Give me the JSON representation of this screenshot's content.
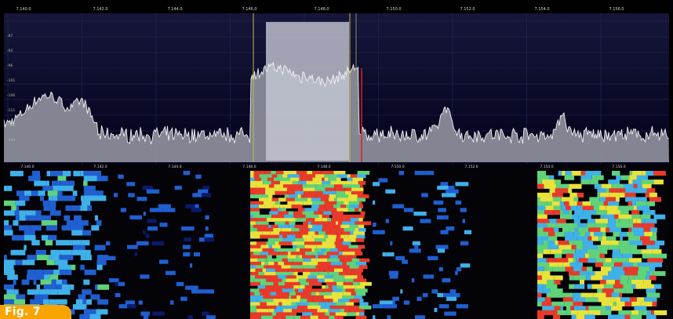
{
  "frequency_ruler": {
    "ticks": [
      "7.140.0",
      "7.142.0",
      "7.144.0",
      "7.146.0",
      "7.148.0",
      "7.150.0",
      "7.152.0",
      "7.154.0",
      "7.156.0"
    ]
  },
  "waterfall_ruler": {
    "ticks": [
      "7.140.0",
      "7.142.0",
      "7.144.0",
      "7.146.0",
      "7.148.0",
      "7.150.0",
      "7.152.0",
      "7.154.0",
      "7.156.0"
    ]
  },
  "spectrum": {
    "level_labels": [
      "-87",
      "-92",
      "-96",
      "-101",
      "-106",
      "-111",
      "-116",
      "-120"
    ],
    "colors": {
      "background_top": "#16163a",
      "background_bottom": "#02021a",
      "grid": "#262a5a",
      "trace_fill": "#8a8c9a",
      "trace_line": "#f2f2f2",
      "passband": "#c6c8d4",
      "filter_edge": "#c8b84a",
      "tuning_marker": "#e02020"
    }
  },
  "figure_tag": {
    "label": "Fig. 7",
    "color": "#f7a400"
  }
}
